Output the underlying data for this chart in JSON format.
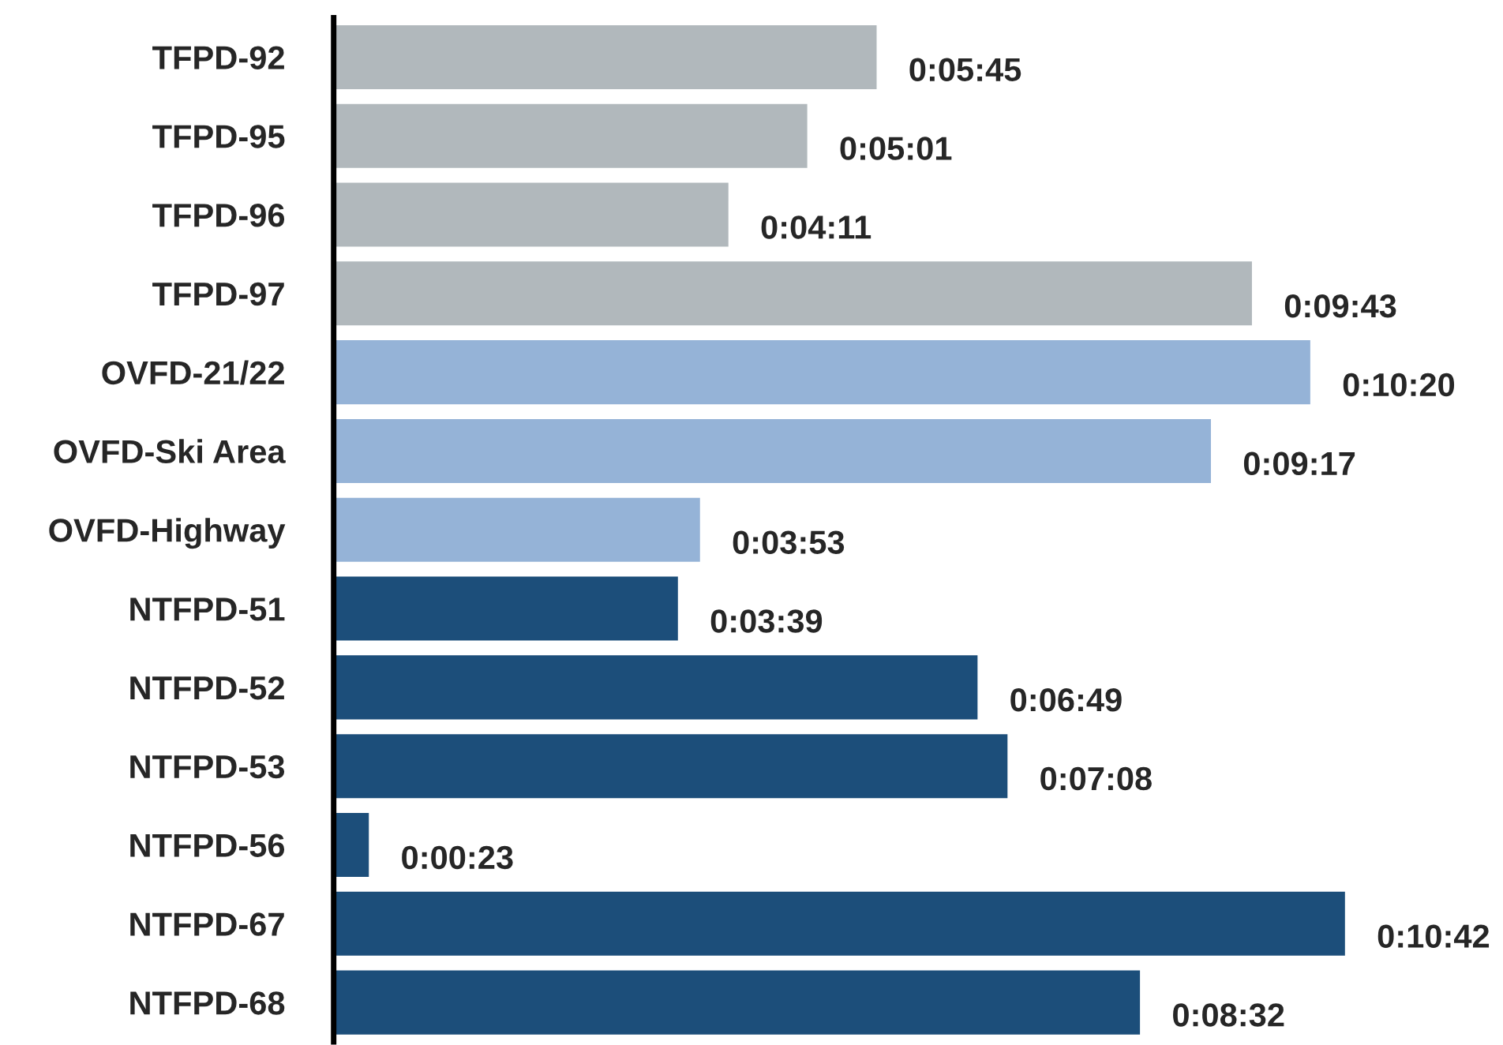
{
  "chart_data": {
    "type": "bar",
    "orientation": "horizontal",
    "categories": [
      "TFPD-92",
      "TFPD-95",
      "TFPD-96",
      "TFPD-97",
      "OVFD-21/22",
      "OVFD-Ski Area",
      "OVFD-Highway",
      "NTFPD-51",
      "NTFPD-52",
      "NTFPD-53",
      "NTFPD-56",
      "NTFPD-67",
      "NTFPD-68"
    ],
    "values": [
      345,
      301,
      251,
      583,
      620,
      557,
      233,
      219,
      409,
      428,
      23,
      642,
      512
    ],
    "value_labels": [
      "0:05:45",
      "0:05:01",
      "0:04:11",
      "0:09:43",
      "0:10:20",
      "0:09:17",
      "0:03:53",
      "0:03:39",
      "0:06:49",
      "0:07:08",
      "0:00:23",
      "0:10:42",
      "0:08:32"
    ],
    "colors": [
      "#b1b8bc",
      "#b1b8bc",
      "#b1b8bc",
      "#b1b8bc",
      "#95b3d7",
      "#95b3d7",
      "#95b3d7",
      "#1c4e7a",
      "#1c4e7a",
      "#1c4e7a",
      "#1c4e7a",
      "#1c4e7a",
      "#1c4e7a"
    ],
    "tick_labels": "y",
    "grid": false,
    "legend": false
  }
}
